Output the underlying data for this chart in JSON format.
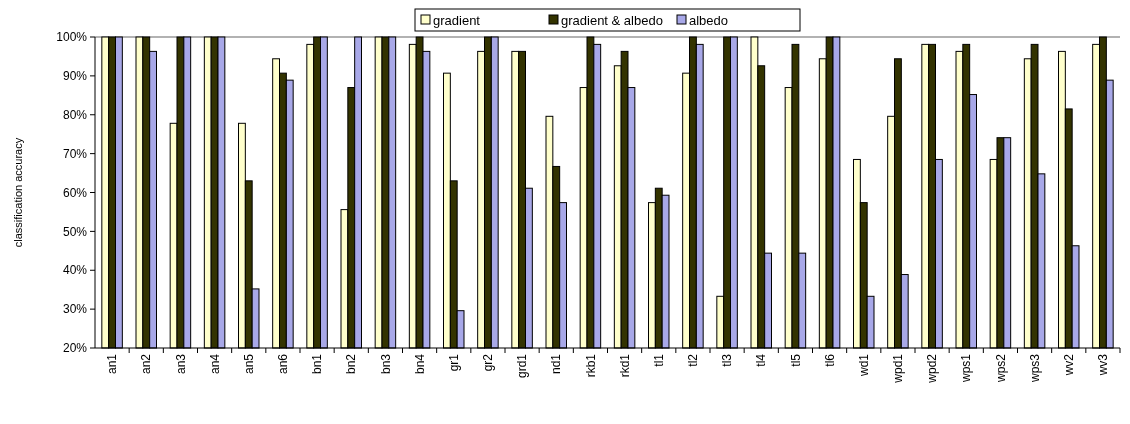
{
  "chart_data": {
    "type": "bar",
    "ylabel": "classification accuracy",
    "categories": [
      "an1",
      "an2",
      "an3",
      "an4",
      "an5",
      "an6",
      "bn1",
      "bn2",
      "bn3",
      "bn4",
      "gr1",
      "gr2",
      "grd1",
      "nd1",
      "rkb1",
      "rkd1",
      "tl1",
      "tl2",
      "tl3",
      "tl4",
      "tl5",
      "tl6",
      "wd1",
      "wpd1",
      "wpd2",
      "wps1",
      "wps2",
      "wps3",
      "wv2",
      "wv3"
    ],
    "series": [
      {
        "name": "gradient",
        "color": "#ffffcc",
        "values": [
          100,
          100,
          77.8,
          100,
          77.8,
          94.4,
          98.1,
          55.6,
          100,
          98.1,
          90.7,
          96.3,
          96.3,
          79.6,
          87,
          92.6,
          57.4,
          90.7,
          33.3,
          100,
          87,
          94.4,
          68.5,
          79.6,
          98.1,
          96.3,
          68.5,
          94.4,
          96.3,
          98.1
        ]
      },
      {
        "name": "gradient & albedo",
        "color": "#333300",
        "values": [
          100,
          100,
          100,
          100,
          63,
          90.7,
          100,
          87,
          100,
          100,
          63,
          100,
          96.3,
          66.7,
          100,
          96.3,
          61.1,
          100,
          100,
          92.6,
          98.1,
          100,
          57.4,
          94.4,
          98.1,
          98.1,
          74.1,
          98.1,
          81.5,
          100
        ]
      },
      {
        "name": "albedo",
        "color": "#a8a8e8",
        "values": [
          100,
          96.3,
          100,
          100,
          35.2,
          88.9,
          100,
          100,
          100,
          96.3,
          29.6,
          100,
          61.1,
          57.4,
          98.1,
          87,
          59.3,
          98.1,
          100,
          44.4,
          44.4,
          100,
          33.3,
          38.9,
          68.5,
          85.2,
          74.1,
          64.8,
          46.3,
          88.9
        ]
      }
    ],
    "ylim": [
      20,
      100
    ],
    "yticks": [
      {
        "value": 20,
        "label": "20%"
      },
      {
        "value": 30,
        "label": "30%"
      },
      {
        "value": 40,
        "label": "40%"
      },
      {
        "value": 50,
        "label": "50%"
      },
      {
        "value": 60,
        "label": "60%"
      },
      {
        "value": 70,
        "label": "70%"
      },
      {
        "value": 80,
        "label": "80%"
      },
      {
        "value": 90,
        "label": "90%"
      },
      {
        "value": 100,
        "label": "100%"
      }
    ],
    "grid": false,
    "legend": "top"
  }
}
